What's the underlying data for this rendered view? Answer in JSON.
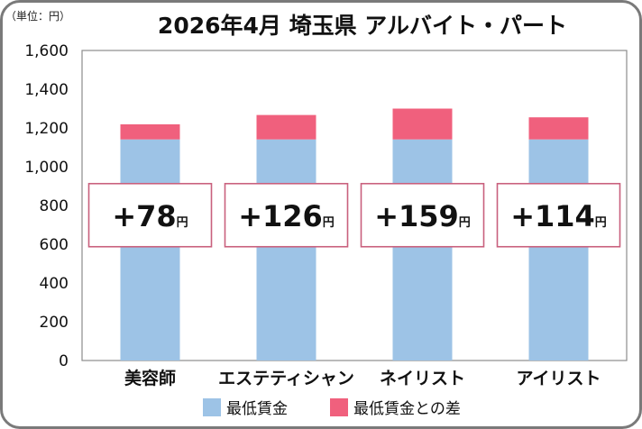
{
  "chart_data": {
    "type": "bar",
    "stacked": true,
    "title": "2026年4月 埼玉県 アルバイト・パート",
    "unit_label": "（単位：円）",
    "categories": [
      "美容師",
      "エステティシャン",
      "ネイリスト",
      "アイリスト"
    ],
    "series": [
      {
        "name": "最低賃金",
        "values": [
          1141,
          1141,
          1141,
          1141
        ],
        "color": "#9dc3e6"
      },
      {
        "name": "最低賃金との差",
        "values": [
          78,
          126,
          159,
          114
        ],
        "color": "#f0607d"
      }
    ],
    "difference_labels": [
      {
        "sign": "+",
        "value": "78",
        "unit": "円"
      },
      {
        "sign": "+",
        "value": "126",
        "unit": "円"
      },
      {
        "sign": "+",
        "value": "159",
        "unit": "円"
      },
      {
        "sign": "+",
        "value": "114",
        "unit": "円"
      }
    ],
    "ylim": [
      0,
      1600
    ],
    "yticks": [
      "0",
      "200",
      "400",
      "600",
      "800",
      "1,000",
      "1,200",
      "1,400",
      "1,600"
    ],
    "label_box_value": 750,
    "grid": false,
    "legend_position": "bottom"
  }
}
